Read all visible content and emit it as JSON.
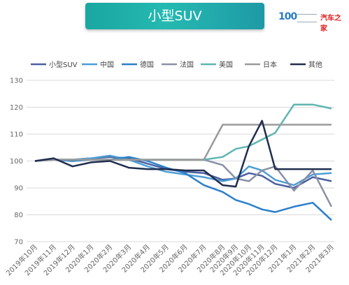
{
  "header": {
    "title": "小型SUV",
    "logo_badge": "100",
    "logo_brand": "汽车之家"
  },
  "chart_data": {
    "type": "line",
    "title": "",
    "xlabel": "",
    "ylabel": "",
    "ylim": [
      70,
      130
    ],
    "yticks": [
      70,
      80,
      90,
      100,
      110,
      120,
      130
    ],
    "grid": true,
    "legend_position": "top",
    "categories": [
      "2019年10月",
      "2019年11月",
      "2019年12月",
      "2020年1月",
      "2020年2月",
      "2020年3月",
      "2020年4月",
      "2020年5月",
      "2020年6月",
      "2020年7月",
      "2020年8月",
      "2020年9月",
      "2020年10月",
      "2020年11月",
      "2020年12月",
      "2021年1月",
      "2021年2月",
      "2021年3月"
    ],
    "x_positions": [
      0,
      1,
      2,
      3,
      4,
      5,
      6,
      7,
      8,
      9,
      10,
      10.7,
      11.4,
      12.1,
      12.8,
      13.8,
      14.8,
      15.8
    ],
    "series": [
      {
        "name": "小型SUV",
        "color": "#4a5fa0",
        "values": [
          100,
          100.5,
          100.5,
          101,
          101.5,
          101,
          99,
          97,
          96,
          95.5,
          93,
          93.5,
          95.5,
          94.5,
          91.5,
          90,
          94,
          92.5
        ]
      },
      {
        "name": "中国",
        "color": "#4d9ed6",
        "values": [
          100,
          100.5,
          100.5,
          101,
          102,
          100.5,
          98,
          96,
          95,
          94,
          92.5,
          93.5,
          98,
          96.5,
          93,
          91,
          95,
          95.5
        ]
      },
      {
        "name": "德国",
        "color": "#2a7fcb",
        "values": [
          100,
          100.5,
          100,
          100.5,
          100.5,
          101.5,
          100,
          97.5,
          95.5,
          91,
          88.5,
          85.5,
          84,
          82,
          81,
          83,
          84.5,
          78
        ]
      },
      {
        "name": "法国",
        "color": "#8a90a6",
        "values": [
          100,
          100.5,
          100.5,
          100.5,
          100.5,
          100.5,
          100.5,
          100.5,
          100.5,
          100.5,
          98.5,
          93.5,
          92.5,
          96.5,
          98,
          89,
          96.5,
          83
        ]
      },
      {
        "name": "美国",
        "color": "#5fb5b2",
        "values": [
          100,
          100.5,
          100.5,
          100.5,
          100.5,
          100.5,
          100.5,
          100.5,
          100.5,
          100.5,
          101.5,
          104.5,
          105.5,
          108,
          110.5,
          121,
          121,
          119.5
        ]
      },
      {
        "name": "日本",
        "color": "#9a9a9a",
        "values": [
          100,
          100.5,
          100.5,
          100.5,
          100.5,
          100.5,
          100.5,
          100.5,
          100.5,
          100.5,
          113.5,
          113.5,
          113.5,
          113.5,
          113.5,
          113.5,
          113.5,
          113.5
        ]
      },
      {
        "name": "其他",
        "color": "#1f2d4e",
        "values": [
          100,
          101,
          98,
          99.5,
          100,
          97.5,
          97,
          97,
          96.5,
          96.5,
          91,
          90.5,
          105.5,
          115,
          97,
          97,
          97,
          97
        ]
      }
    ]
  }
}
